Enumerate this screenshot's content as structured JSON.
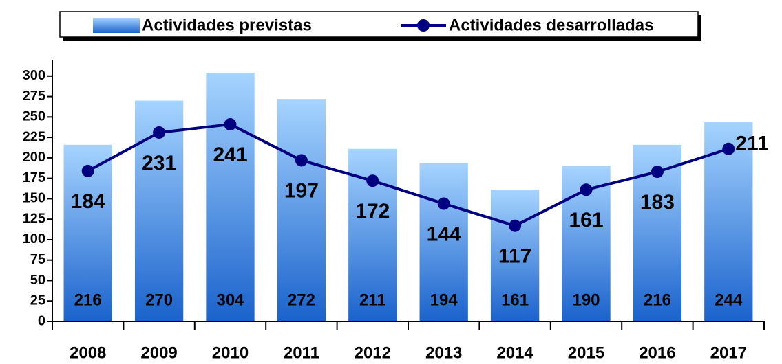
{
  "chart_data": {
    "type": "bar",
    "categories": [
      "2008",
      "2009",
      "2010",
      "2011",
      "2012",
      "2013",
      "2014",
      "2015",
      "2016",
      "2017"
    ],
    "series": [
      {
        "name": "Actividades previstas",
        "type": "bar",
        "color": "#1f6fd6",
        "values": [
          216,
          270,
          304,
          272,
          211,
          194,
          161,
          190,
          216,
          244
        ]
      },
      {
        "name": "Actividades desarrolladas",
        "type": "line",
        "color": "#000080",
        "values": [
          184,
          231,
          241,
          197,
          172,
          144,
          117,
          161,
          183,
          211
        ]
      }
    ],
    "ylim": [
      0,
      320
    ],
    "yticks": [
      0,
      25,
      50,
      75,
      100,
      125,
      150,
      175,
      200,
      225,
      250,
      275,
      300
    ]
  }
}
